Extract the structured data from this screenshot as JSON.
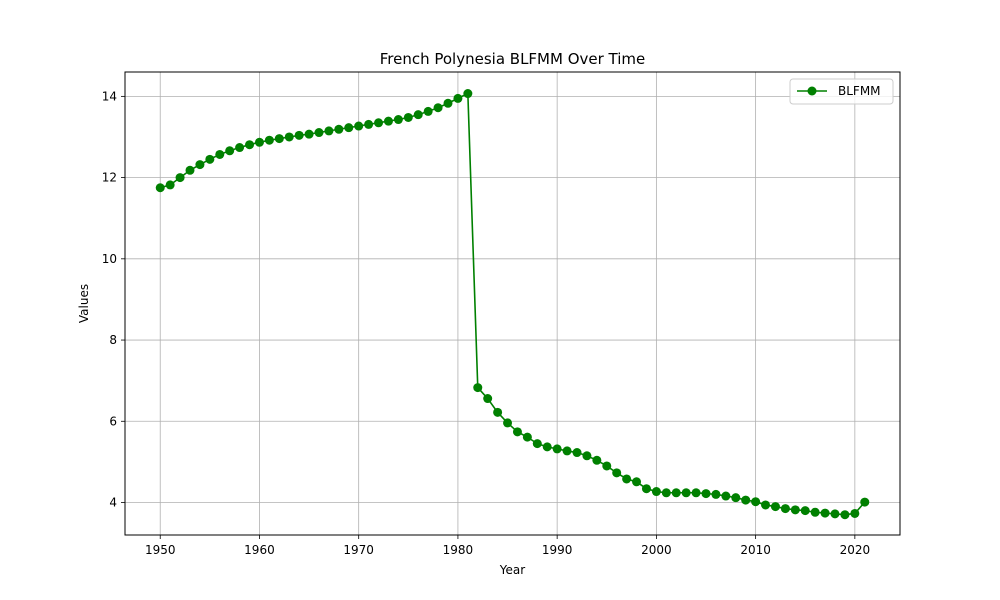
{
  "chart_data": {
    "type": "line",
    "title": "French Polynesia BLFMM Over Time",
    "xlabel": "Year",
    "ylabel": "Values",
    "xlim": [
      1946.45,
      2024.55
    ],
    "ylim": [
      3.2,
      14.6
    ],
    "xticks": [
      1950,
      1960,
      1970,
      1980,
      1990,
      2000,
      2010,
      2020
    ],
    "yticks": [
      4,
      6,
      8,
      10,
      12,
      14
    ],
    "grid": true,
    "legend_position": "top-right",
    "series": [
      {
        "name": "BLFMM",
        "color": "#008000",
        "marker": "circle",
        "x": [
          1950,
          1951,
          1952,
          1953,
          1954,
          1955,
          1956,
          1957,
          1958,
          1959,
          1960,
          1961,
          1962,
          1963,
          1964,
          1965,
          1966,
          1967,
          1968,
          1969,
          1970,
          1971,
          1972,
          1973,
          1974,
          1975,
          1976,
          1977,
          1978,
          1979,
          1980,
          1981,
          1982,
          1983,
          1984,
          1985,
          1986,
          1987,
          1988,
          1989,
          1990,
          1991,
          1992,
          1993,
          1994,
          1995,
          1996,
          1997,
          1998,
          1999,
          2000,
          2001,
          2002,
          2003,
          2004,
          2005,
          2006,
          2007,
          2008,
          2009,
          2010,
          2011,
          2012,
          2013,
          2014,
          2015,
          2016,
          2017,
          2018,
          2019,
          2020,
          2021
        ],
        "values": [
          11.75,
          11.82,
          12.0,
          12.18,
          12.32,
          12.45,
          12.57,
          12.66,
          12.74,
          12.81,
          12.87,
          12.92,
          12.96,
          13.0,
          13.04,
          13.07,
          13.11,
          13.15,
          13.19,
          13.23,
          13.27,
          13.31,
          13.35,
          13.39,
          13.43,
          13.48,
          13.55,
          13.63,
          13.72,
          13.83,
          13.95,
          14.07,
          6.83,
          6.56,
          6.22,
          5.96,
          5.74,
          5.61,
          5.45,
          5.37,
          5.32,
          5.27,
          5.23,
          5.15,
          5.04,
          4.9,
          4.73,
          4.58,
          4.51,
          4.34,
          4.27,
          4.24,
          4.24,
          4.24,
          4.24,
          4.22,
          4.2,
          4.16,
          4.12,
          4.06,
          4.02,
          3.94,
          3.9,
          3.85,
          3.82,
          3.8,
          3.76,
          3.74,
          3.72,
          3.7,
          3.73,
          4.01
        ]
      }
    ]
  }
}
